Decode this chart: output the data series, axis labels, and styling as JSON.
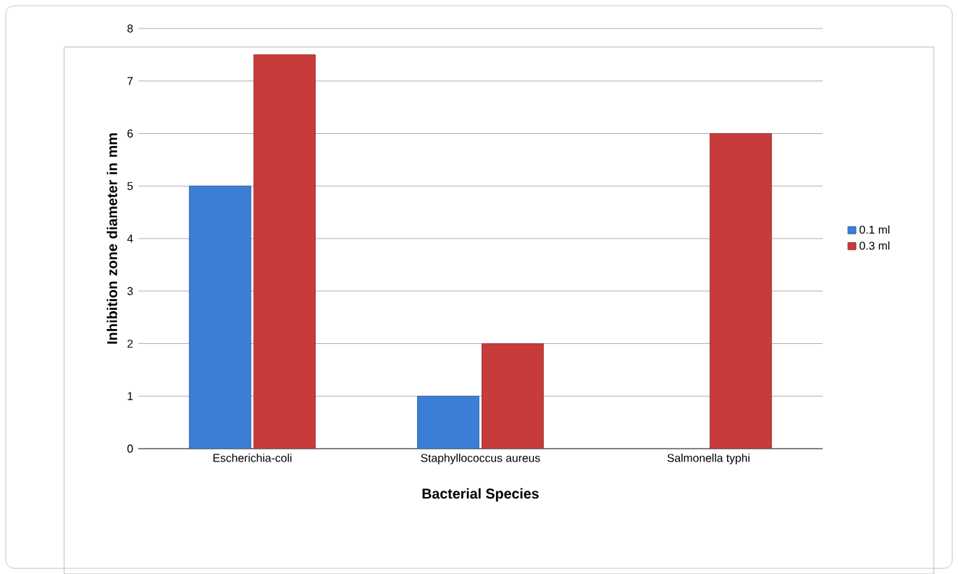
{
  "chart_data": {
    "type": "bar",
    "xlabel": "Bacterial  Species",
    "ylabel": "Inhibition zone diameter in mm",
    "categories": [
      "Escherichia-coli",
      "Staphyllococcus aureus",
      "Salmonella typhi"
    ],
    "series": [
      {
        "name": "0.1 ml",
        "color": "#3a7fd5",
        "values": [
          5,
          1,
          null
        ]
      },
      {
        "name": "0.3 ml",
        "color": "#c83b3b",
        "values": [
          7.5,
          2,
          6
        ]
      }
    ],
    "ylim": [
      0,
      8
    ],
    "yticks": [
      0,
      1,
      2,
      3,
      4,
      5,
      6,
      7,
      8
    ],
    "grid": "y",
    "legend": "right"
  }
}
